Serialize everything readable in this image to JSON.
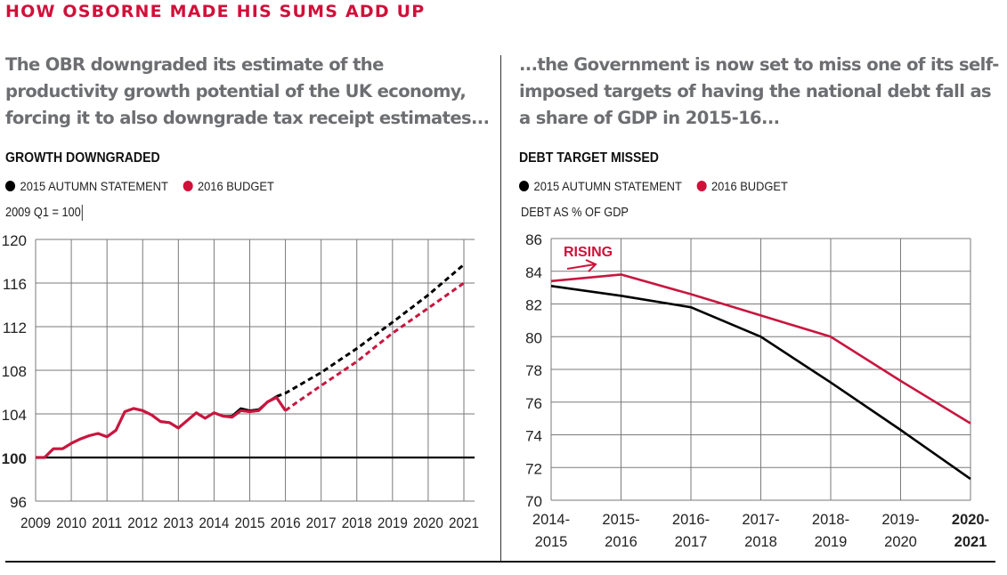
{
  "header": {
    "kicker": "HOW OSBORNE MADE HIS SUMS ADD UP",
    "left_standfirst": "The OBR downgraded its estimate of the productivity growth potential of the UK economy, forcing it to also downgrade tax receipt estimates...",
    "right_standfirst": "...the Government is now set to miss one of its self-imposed targets of having the national debt fall as a share of GDP in 2015-16..."
  },
  "colors": {
    "accent": "#d0103a",
    "standfirst": "#6d6e71",
    "autumn_statement": "#000000",
    "budget": "#c8163f",
    "grid": "#7a7a7a"
  },
  "chart_data": [
    {
      "type": "line",
      "title": "GROWTH DOWNGRADED",
      "ylabel": "2009 Q1 = 100",
      "xlabel": "",
      "legend": [
        "2015 AUTUMN STATEMENT",
        "2016 BUDGET"
      ],
      "legend_placement": "top-left",
      "grid": true,
      "xlim": [
        2009,
        2021
      ],
      "ylim": [
        96,
        120
      ],
      "x_ticks": [
        "2009",
        "2010",
        "2011",
        "2012",
        "2013",
        "2014",
        "2015",
        "2016",
        "2017",
        "2018",
        "2019",
        "2020",
        "2021"
      ],
      "y_ticks": [
        "96",
        "100",
        "104",
        "108",
        "112",
        "116",
        "120"
      ],
      "reference_line": 100,
      "series": [
        {
          "name": "2015 AUTUMN STATEMENT",
          "color": "#000000",
          "actual": [
            [
              2009.0,
              100.0
            ],
            [
              2009.25,
              100.0
            ],
            [
              2009.5,
              100.8
            ],
            [
              2009.75,
              100.8
            ],
            [
              2010.0,
              101.3
            ],
            [
              2010.25,
              101.7
            ],
            [
              2010.5,
              102.0
            ],
            [
              2010.75,
              102.2
            ],
            [
              2011.0,
              101.9
            ],
            [
              2011.25,
              102.5
            ],
            [
              2011.5,
              104.2
            ],
            [
              2011.75,
              104.5
            ],
            [
              2012.0,
              104.3
            ],
            [
              2012.25,
              103.9
            ],
            [
              2012.5,
              103.3
            ],
            [
              2012.75,
              103.2
            ],
            [
              2013.0,
              102.7
            ],
            [
              2013.25,
              103.4
            ],
            [
              2013.5,
              104.1
            ],
            [
              2013.75,
              103.6
            ],
            [
              2014.0,
              104.1
            ],
            [
              2014.25,
              103.8
            ],
            [
              2014.5,
              103.8
            ],
            [
              2014.75,
              104.5
            ],
            [
              2015.0,
              104.3
            ],
            [
              2015.25,
              104.4
            ],
            [
              2015.5,
              105.1
            ],
            [
              2015.75,
              105.6
            ]
          ],
          "forecast": [
            [
              2015.75,
              105.6
            ],
            [
              2016.0,
              105.9
            ],
            [
              2017.0,
              107.8
            ],
            [
              2018.0,
              110.0
            ],
            [
              2019.0,
              112.4
            ],
            [
              2020.0,
              114.9
            ],
            [
              2021.0,
              117.7
            ]
          ]
        },
        {
          "name": "2016 BUDGET",
          "color": "#c8163f",
          "actual": [
            [
              2009.0,
              100.0
            ],
            [
              2009.25,
              100.0
            ],
            [
              2009.5,
              100.8
            ],
            [
              2009.75,
              100.8
            ],
            [
              2010.0,
              101.3
            ],
            [
              2010.25,
              101.7
            ],
            [
              2010.5,
              102.0
            ],
            [
              2010.75,
              102.2
            ],
            [
              2011.0,
              101.9
            ],
            [
              2011.25,
              102.5
            ],
            [
              2011.5,
              104.2
            ],
            [
              2011.75,
              104.5
            ],
            [
              2012.0,
              104.3
            ],
            [
              2012.25,
              103.9
            ],
            [
              2012.5,
              103.3
            ],
            [
              2012.75,
              103.2
            ],
            [
              2013.0,
              102.7
            ],
            [
              2013.25,
              103.4
            ],
            [
              2013.5,
              104.1
            ],
            [
              2013.75,
              103.6
            ],
            [
              2014.0,
              104.1
            ],
            [
              2014.25,
              103.8
            ],
            [
              2014.5,
              103.7
            ],
            [
              2014.75,
              104.3
            ],
            [
              2015.0,
              104.2
            ],
            [
              2015.25,
              104.3
            ],
            [
              2015.5,
              105.1
            ],
            [
              2015.75,
              105.5
            ],
            [
              2016.0,
              104.3
            ]
          ],
          "forecast": [
            [
              2016.0,
              104.3
            ],
            [
              2016.25,
              104.9
            ],
            [
              2017.0,
              106.6
            ],
            [
              2018.0,
              108.8
            ],
            [
              2019.0,
              111.4
            ],
            [
              2020.0,
              113.7
            ],
            [
              2021.0,
              116.0
            ]
          ]
        }
      ]
    },
    {
      "type": "line",
      "title": "DEBT TARGET MISSED",
      "ylabel": "DEBT AS % OF GDP",
      "xlabel": "",
      "legend": [
        "2015 AUTUMN STATEMENT",
        "2016 BUDGET"
      ],
      "legend_placement": "top-left",
      "grid": true,
      "ylim": [
        70,
        86
      ],
      "categories": [
        [
          "2014-",
          "2015"
        ],
        [
          "2015-",
          "2016"
        ],
        [
          "2016-",
          "2017"
        ],
        [
          "2017-",
          "2018"
        ],
        [
          "2018-",
          "2019"
        ],
        [
          "2019-",
          "2020"
        ],
        [
          "2020-",
          "2021"
        ]
      ],
      "bold_category_index": 6,
      "y_ticks": [
        "70",
        "72",
        "74",
        "76",
        "78",
        "80",
        "82",
        "84",
        "86"
      ],
      "annotation": "RISING",
      "series": [
        {
          "name": "2015 AUTUMN STATEMENT",
          "color": "#000000",
          "values": [
            83.1,
            82.5,
            81.8,
            80.0,
            77.2,
            74.3,
            71.3
          ]
        },
        {
          "name": "2016 BUDGET",
          "color": "#c8163f",
          "values": [
            83.4,
            83.8,
            82.6,
            81.3,
            80.0,
            77.3,
            74.7
          ]
        }
      ]
    }
  ]
}
